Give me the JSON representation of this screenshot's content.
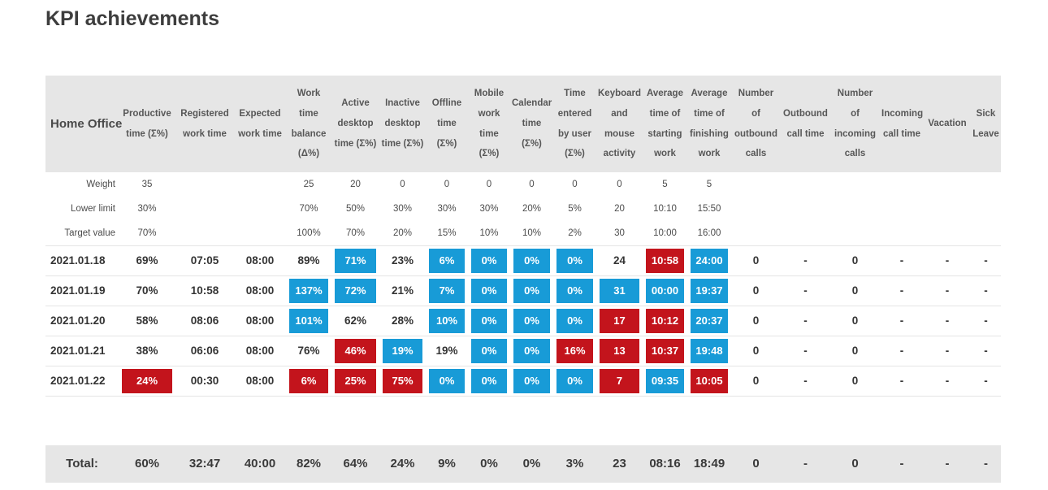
{
  "page": {
    "title": "KPI achievements"
  },
  "colors": {
    "kpi_good_blue": "#189bd7",
    "kpi_bad_red": "#c3141c",
    "header_bg": "#e6e6e6"
  },
  "table": {
    "group_header": "Home Office",
    "columns": [
      "Productive time (Σ%)",
      "Registered work time",
      "Expected work time",
      "Work time balance (Δ%)",
      "Active desktop time (Σ%)",
      "Inactive desktop time (Σ%)",
      "Offline time (Σ%)",
      "Mobile work time (Σ%)",
      "Calendar time (Σ%)",
      "Time entered by user (Σ%)",
      "Keyboard and mouse activity",
      "Average time of starting work",
      "Average time of finishing work",
      "Number of outbound calls",
      "Outbound call time",
      "Number of incoming calls",
      "Incoming call time",
      "Vacation",
      "Sick Leave"
    ],
    "meta_rows": [
      {
        "label": "Weight",
        "values": [
          "35",
          "",
          "",
          "25",
          "20",
          "0",
          "0",
          "0",
          "0",
          "0",
          "0",
          "5",
          "5",
          "",
          "",
          "",
          "",
          "",
          ""
        ]
      },
      {
        "label": "Lower limit",
        "values": [
          "30%",
          "",
          "",
          "70%",
          "50%",
          "30%",
          "30%",
          "30%",
          "20%",
          "5%",
          "20",
          "10:10",
          "15:50",
          "",
          "",
          "",
          "",
          "",
          ""
        ]
      },
      {
        "label": "Target value",
        "values": [
          "70%",
          "",
          "",
          "100%",
          "70%",
          "20%",
          "15%",
          "10%",
          "10%",
          "2%",
          "30",
          "10:00",
          "16:00",
          "",
          "",
          "",
          "",
          "",
          ""
        ]
      }
    ],
    "rows": [
      {
        "date": "2021.01.18",
        "values": [
          "69%",
          "07:05",
          "08:00",
          "89%",
          "71%",
          "23%",
          "6%",
          "0%",
          "0%",
          "0%",
          "24",
          "10:58",
          "24:00",
          "0",
          "-",
          "0",
          "-",
          "-",
          "-"
        ],
        "styles": [
          "plain",
          "plain",
          "plain",
          "plain",
          "blue",
          "plain",
          "blue",
          "blue",
          "blue",
          "blue",
          "plain",
          "red",
          "blue",
          "plain",
          "plain",
          "plain",
          "plain",
          "plain",
          "plain"
        ]
      },
      {
        "date": "2021.01.19",
        "values": [
          "70%",
          "10:58",
          "08:00",
          "137%",
          "72%",
          "21%",
          "7%",
          "0%",
          "0%",
          "0%",
          "31",
          "00:00",
          "19:37",
          "0",
          "-",
          "0",
          "-",
          "-",
          "-"
        ],
        "styles": [
          "plain",
          "plain",
          "plain",
          "blue",
          "blue",
          "plain",
          "blue",
          "blue",
          "blue",
          "blue",
          "blue",
          "blue",
          "blue",
          "plain",
          "plain",
          "plain",
          "plain",
          "plain",
          "plain"
        ]
      },
      {
        "date": "2021.01.20",
        "values": [
          "58%",
          "08:06",
          "08:00",
          "101%",
          "62%",
          "28%",
          "10%",
          "0%",
          "0%",
          "0%",
          "17",
          "10:12",
          "20:37",
          "0",
          "-",
          "0",
          "-",
          "-",
          "-"
        ],
        "styles": [
          "plain",
          "plain",
          "plain",
          "blue",
          "plain",
          "plain",
          "blue",
          "blue",
          "blue",
          "blue",
          "red",
          "red",
          "blue",
          "plain",
          "plain",
          "plain",
          "plain",
          "plain",
          "plain"
        ]
      },
      {
        "date": "2021.01.21",
        "values": [
          "38%",
          "06:06",
          "08:00",
          "76%",
          "46%",
          "19%",
          "19%",
          "0%",
          "0%",
          "16%",
          "13",
          "10:37",
          "19:48",
          "0",
          "-",
          "0",
          "-",
          "-",
          "-"
        ],
        "styles": [
          "plain",
          "plain",
          "plain",
          "plain",
          "red",
          "blue",
          "plain",
          "blue",
          "blue",
          "red",
          "red",
          "red",
          "blue",
          "plain",
          "plain",
          "plain",
          "plain",
          "plain",
          "plain"
        ]
      },
      {
        "date": "2021.01.22",
        "values": [
          "24%",
          "00:30",
          "08:00",
          "6%",
          "25%",
          "75%",
          "0%",
          "0%",
          "0%",
          "0%",
          "7",
          "09:35",
          "10:05",
          "0",
          "-",
          "0",
          "-",
          "-",
          "-"
        ],
        "styles": [
          "red",
          "plain",
          "plain",
          "red",
          "red",
          "red",
          "blue",
          "blue",
          "blue",
          "blue",
          "red",
          "blue",
          "red",
          "plain",
          "plain",
          "plain",
          "plain",
          "plain",
          "plain"
        ]
      }
    ],
    "total": {
      "label": "Total:",
      "values": [
        "60%",
        "32:47",
        "40:00",
        "82%",
        "64%",
        "24%",
        "9%",
        "0%",
        "0%",
        "3%",
        "23",
        "08:16",
        "18:49",
        "0",
        "-",
        "0",
        "-",
        "-",
        "-"
      ]
    }
  }
}
